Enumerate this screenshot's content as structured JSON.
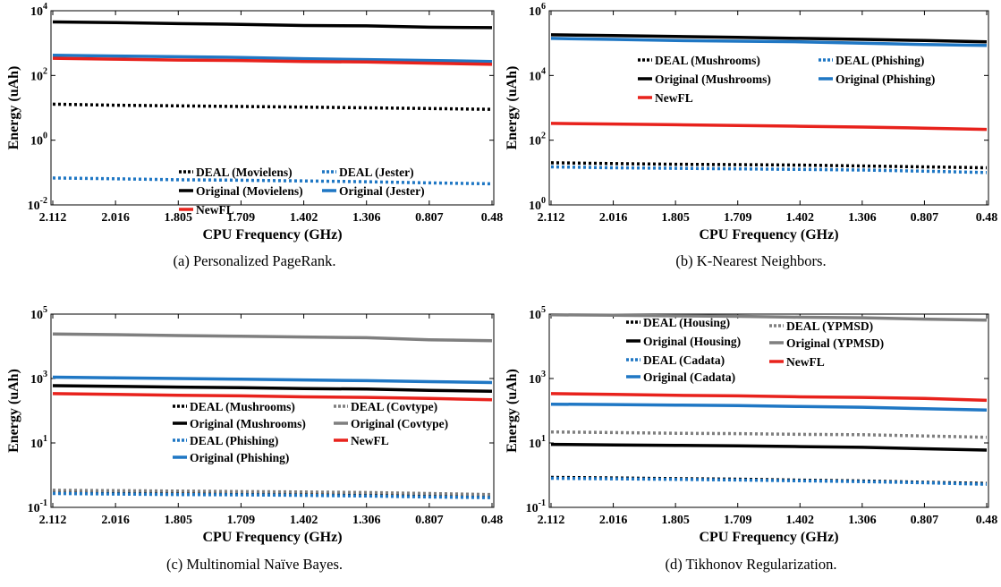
{
  "chart_data": [
    {
      "id": "a",
      "type": "line",
      "caption": "(a) Personalized PageRank.",
      "xlabel": "CPU Frequency (GHz)",
      "ylabel": "Energy (uAh)",
      "categories": [
        "2.112",
        "2.016",
        "1.805",
        "1.709",
        "1.402",
        "1.306",
        "0.807",
        "0.48"
      ],
      "yscale": "log",
      "ylim_exp": [
        -2,
        4
      ],
      "yticks_exp": [
        -2,
        0,
        2,
        4
      ],
      "legend_position": "lower-right",
      "series": [
        {
          "name": "DEAL (Movielens)",
          "color": "#000000",
          "style": "dotted",
          "legend_order": 0,
          "values": [
            13,
            12,
            11.5,
            11,
            10.5,
            10,
            9.5,
            9
          ]
        },
        {
          "name": "DEAL (Jester)",
          "color": "#1f77c4",
          "style": "dotted",
          "legend_order": 1,
          "values": [
            0.068,
            0.064,
            0.06,
            0.058,
            0.055,
            0.052,
            0.048,
            0.045
          ]
        },
        {
          "name": "Original (Movielens)",
          "color": "#000000",
          "style": "solid",
          "legend_order": 2,
          "values": [
            4500,
            4300,
            4000,
            3800,
            3500,
            3400,
            3100,
            3000
          ]
        },
        {
          "name": "Original (Jester)",
          "color": "#1f77c4",
          "style": "solid",
          "legend_order": 3,
          "values": [
            420,
            400,
            380,
            360,
            330,
            310,
            290,
            270
          ]
        },
        {
          "name": "NewFL",
          "color": "#e8221c",
          "style": "solid",
          "legend_order": 4,
          "values": [
            340,
            320,
            300,
            290,
            270,
            260,
            240,
            220
          ]
        }
      ]
    },
    {
      "id": "b",
      "type": "line",
      "caption": "(b) K-Nearest Neighbors.",
      "xlabel": "CPU Frequency (GHz)",
      "ylabel": "Energy (uAh)",
      "categories": [
        "2.112",
        "2.016",
        "1.805",
        "1.709",
        "1.402",
        "1.306",
        "0.807",
        "0.48"
      ],
      "yscale": "log",
      "ylim_exp": [
        0,
        6
      ],
      "yticks_exp": [
        0,
        2,
        4,
        6
      ],
      "legend_position": "upper-right",
      "series": [
        {
          "name": "DEAL (Mushrooms)",
          "color": "#000000",
          "style": "dotted",
          "legend_order": 0,
          "values": [
            20,
            19,
            18,
            17.5,
            17,
            16,
            15,
            14
          ]
        },
        {
          "name": "DEAL (Phishing)",
          "color": "#1f77c4",
          "style": "dotted",
          "legend_order": 1,
          "values": [
            15,
            14,
            13.5,
            13,
            12.5,
            12,
            11,
            10
          ]
        },
        {
          "name": "Original (Mushrooms)",
          "color": "#000000",
          "style": "solid",
          "legend_order": 2,
          "values": [
            180000,
            170000,
            160000,
            150000,
            140000,
            130000,
            120000,
            110000
          ]
        },
        {
          "name": "Original (Phishing)",
          "color": "#1f77c4",
          "style": "solid",
          "legend_order": 3,
          "values": [
            140000,
            130000,
            120000,
            115000,
            110000,
            100000,
            90000,
            85000
          ]
        },
        {
          "name": "NewFL",
          "color": "#e8221c",
          "style": "solid",
          "legend_order": 4,
          "values": [
            330,
            315,
            300,
            285,
            270,
            255,
            235,
            215
          ]
        }
      ]
    },
    {
      "id": "c",
      "type": "line",
      "caption": "(c) Multinomial Naïve Bayes.",
      "xlabel": "CPU Frequency (GHz)",
      "ylabel": "Energy (uAh)",
      "categories": [
        "2.112",
        "2.016",
        "1.805",
        "1.709",
        "1.402",
        "1.306",
        "0.807",
        "0.48"
      ],
      "yscale": "log",
      "ylim_exp": [
        -1,
        5
      ],
      "yticks_exp": [
        -1,
        1,
        3,
        5
      ],
      "legend_position": "lower-right",
      "series": [
        {
          "name": "DEAL (Mushrooms)",
          "color": "#000000",
          "style": "dotted",
          "legend_order": 0,
          "values": [
            0.3,
            0.29,
            0.28,
            0.27,
            0.26,
            0.25,
            0.24,
            0.22
          ]
        },
        {
          "name": "DEAL (Covtype)",
          "color": "#7f7f7f",
          "style": "dotted",
          "legend_order": 1,
          "values": [
            0.34,
            0.33,
            0.32,
            0.31,
            0.3,
            0.29,
            0.27,
            0.25
          ]
        },
        {
          "name": "Original (Mushrooms)",
          "color": "#000000",
          "style": "solid",
          "legend_order": 2,
          "values": [
            600,
            570,
            540,
            520,
            490,
            470,
            430,
            400
          ]
        },
        {
          "name": "Original (Covtype)",
          "color": "#7f7f7f",
          "style": "solid",
          "legend_order": 3,
          "values": [
            24000,
            23000,
            21500,
            20500,
            19500,
            18500,
            16000,
            15000
          ]
        },
        {
          "name": "DEAL (Phishing)",
          "color": "#1f77c4",
          "style": "dotted",
          "legend_order": 4,
          "values": [
            0.27,
            0.26,
            0.25,
            0.245,
            0.235,
            0.225,
            0.21,
            0.2
          ]
        },
        {
          "name": "NewFL",
          "color": "#e8221c",
          "style": "solid",
          "legend_order": 5,
          "values": [
            340,
            320,
            300,
            290,
            270,
            260,
            240,
            220
          ]
        },
        {
          "name": "Original (Phishing)",
          "color": "#1f77c4",
          "style": "solid",
          "legend_order": 6,
          "values": [
            1100,
            1050,
            1000,
            950,
            900,
            860,
            800,
            750
          ]
        }
      ]
    },
    {
      "id": "d",
      "type": "line",
      "caption": "(d) Tikhonov Regularization.",
      "xlabel": "CPU Frequency (GHz)",
      "ylabel": "Energy (uAh)",
      "categories": [
        "2.112",
        "2.016",
        "1.805",
        "1.709",
        "1.402",
        "1.306",
        "0.807",
        "0.48"
      ],
      "yscale": "log",
      "ylim_exp": [
        -1,
        5
      ],
      "yticks_exp": [
        -1,
        1,
        3,
        5
      ],
      "legend_position": "top",
      "series": [
        {
          "name": "DEAL (Housing)",
          "color": "#000000",
          "style": "dotted",
          "legend_order": 0,
          "values": [
            0.85,
            0.82,
            0.78,
            0.75,
            0.7,
            0.66,
            0.6,
            0.55
          ]
        },
        {
          "name": "DEAL (YPMSD)",
          "color": "#7f7f7f",
          "style": "dotted",
          "legend_order": 1,
          "values": [
            22,
            21,
            20,
            19.5,
            18.5,
            18,
            16.5,
            15
          ]
        },
        {
          "name": "Original (Housing)",
          "color": "#000000",
          "style": "solid",
          "legend_order": 2,
          "values": [
            9,
            8.7,
            8.4,
            8.1,
            7.7,
            7.3,
            6.6,
            6
          ]
        },
        {
          "name": "Original (YPMSD)",
          "color": "#7f7f7f",
          "style": "solid",
          "legend_order": 3,
          "values": [
            95000,
            92000,
            88000,
            85000,
            80000,
            77000,
            70000,
            65000
          ]
        },
        {
          "name": "DEAL (Cadata)",
          "color": "#1f77c4",
          "style": "dotted",
          "legend_order": 4,
          "values": [
            0.8,
            0.77,
            0.74,
            0.71,
            0.67,
            0.63,
            0.58,
            0.52
          ]
        },
        {
          "name": "NewFL",
          "color": "#e8221c",
          "style": "solid",
          "legend_order": 5,
          "values": [
            340,
            320,
            300,
            290,
            270,
            260,
            240,
            210
          ]
        },
        {
          "name": "Original (Cadata)",
          "color": "#1f77c4",
          "style": "solid",
          "legend_order": 6,
          "values": [
            160,
            155,
            150,
            145,
            135,
            128,
            115,
            105
          ]
        }
      ]
    }
  ]
}
